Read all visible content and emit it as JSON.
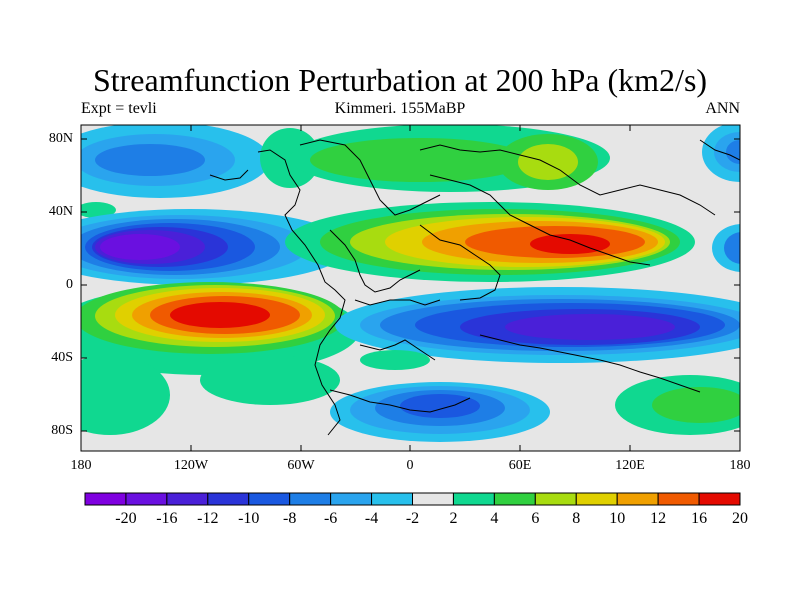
{
  "title": "Streamfunction Perturbation at 200 hPa (km2/s)",
  "left_label": "Expt = tevli",
  "center_label": "Kimmeri. 155MaBP",
  "right_label": "ANN",
  "lat_ticks": [
    "80N",
    "40N",
    "0",
    "40S",
    "80S"
  ],
  "lon_ticks": [
    "180",
    "120W",
    "60W",
    "0",
    "60E",
    "120E",
    "180"
  ],
  "colorbar": {
    "labels": [
      "-20",
      "-16",
      "-12",
      "-10",
      "-8",
      "-6",
      "-4",
      "-2",
      "2",
      "4",
      "6",
      "8",
      "10",
      "12",
      "16",
      "20"
    ],
    "colors": [
      "#7f00e0",
      "#6a10e0",
      "#4a20d8",
      "#2a34d8",
      "#1a58e0",
      "#1e7ee6",
      "#2aa4ee",
      "#28c0ec",
      "#e6e6e6",
      "#10d890",
      "#30d040",
      "#a8dc10",
      "#e0d000",
      "#f0a000",
      "#f05a00",
      "#e40a00"
    ]
  }
}
